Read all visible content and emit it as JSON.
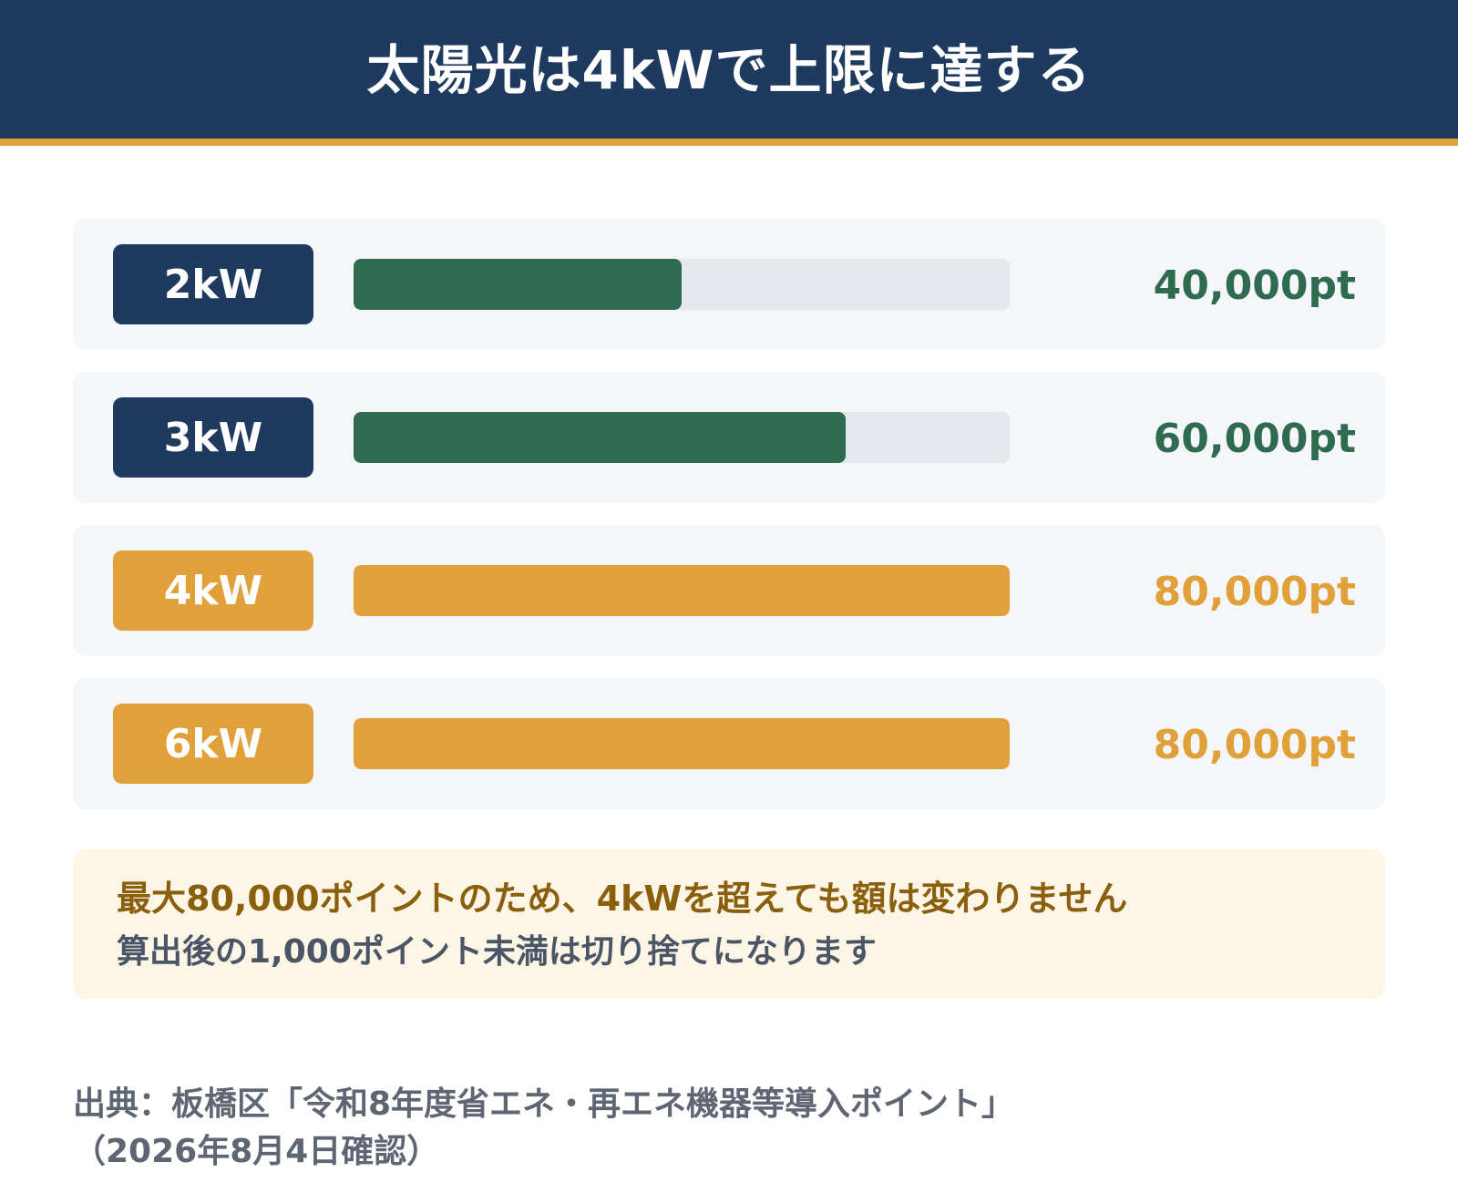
{
  "title": "太陽光は4kWで上限に達する",
  "colors": {
    "navy": "#1f3a5f",
    "gold": "#e0a03a",
    "green": "#2f6b4f",
    "track": "#e5e8ec",
    "note_bg": "#fdf6e7"
  },
  "chart_data": {
    "type": "bar",
    "orientation": "horizontal",
    "categories": [
      "2kW",
      "3kW",
      "4kW",
      "6kW"
    ],
    "values": [
      40000,
      60000,
      80000,
      80000
    ],
    "value_labels": [
      "40,000pt",
      "60,000pt",
      "80,000pt",
      "80,000pt"
    ],
    "xlim": [
      0,
      80000
    ],
    "highlight": [
      "none",
      "none",
      "max",
      "max"
    ],
    "title": "太陽光は4kWで上限に達する",
    "xlabel": "",
    "ylabel": ""
  },
  "note": {
    "line1": "最大80,000ポイントのため、4kWを超えても額は変わりません",
    "line2": "算出後の1,000ポイント未満は切り捨てになります"
  },
  "source": {
    "line1": "出典：板橋区「令和8年度省エネ・再エネ機器等導入ポイント」",
    "line2": "（2026年8月4日確認）"
  }
}
